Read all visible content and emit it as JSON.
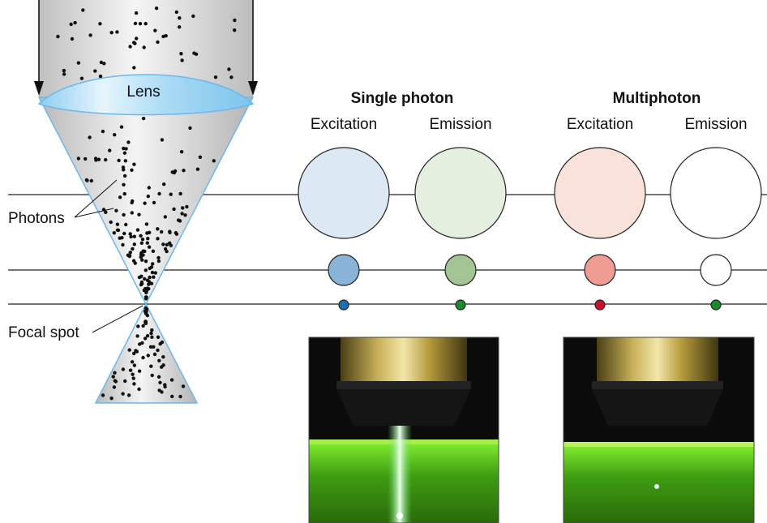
{
  "labels": {
    "lens": "Lens",
    "photons": "Photons",
    "focal_spot": "Focal spot"
  },
  "headers": {
    "single_photon": "Single photon",
    "multiphoton": "Multiphoton"
  },
  "columns": [
    {
      "id": "single-excitation",
      "label": "Excitation",
      "fill": "#dce9f5",
      "mid_fill": "#8ab3d8",
      "dot_fill": "#1f6fb0"
    },
    {
      "id": "single-emission",
      "label": "Emission",
      "fill": "#e4efdf",
      "mid_fill": "#a3c494",
      "dot_fill": "#1e8a2e"
    },
    {
      "id": "multi-excitation",
      "label": "Excitation",
      "fill": "#f9e2da",
      "mid_fill": "#ef9d93",
      "dot_fill": "#c8102e"
    },
    {
      "id": "multi-emission",
      "label": "Emission",
      "fill": "#ffffff",
      "mid_fill": "#ffffff",
      "dot_fill": "#1e8a2e"
    }
  ],
  "colors": {
    "cone_fill": "#c9c9c9",
    "cone_edge": "#6db8e8",
    "lens_fill": "#bfe1f6",
    "line": "#222222",
    "photo_bg": "#0b0b0b",
    "objective_gold": "#a8902e",
    "cuvette_green": "#58c81c",
    "beam": "#c8ffd0"
  },
  "photos": [
    {
      "id": "single-photon-photo",
      "kind": "vertical-beam"
    },
    {
      "id": "multiphoton-photo",
      "kind": "focal-point"
    }
  ]
}
